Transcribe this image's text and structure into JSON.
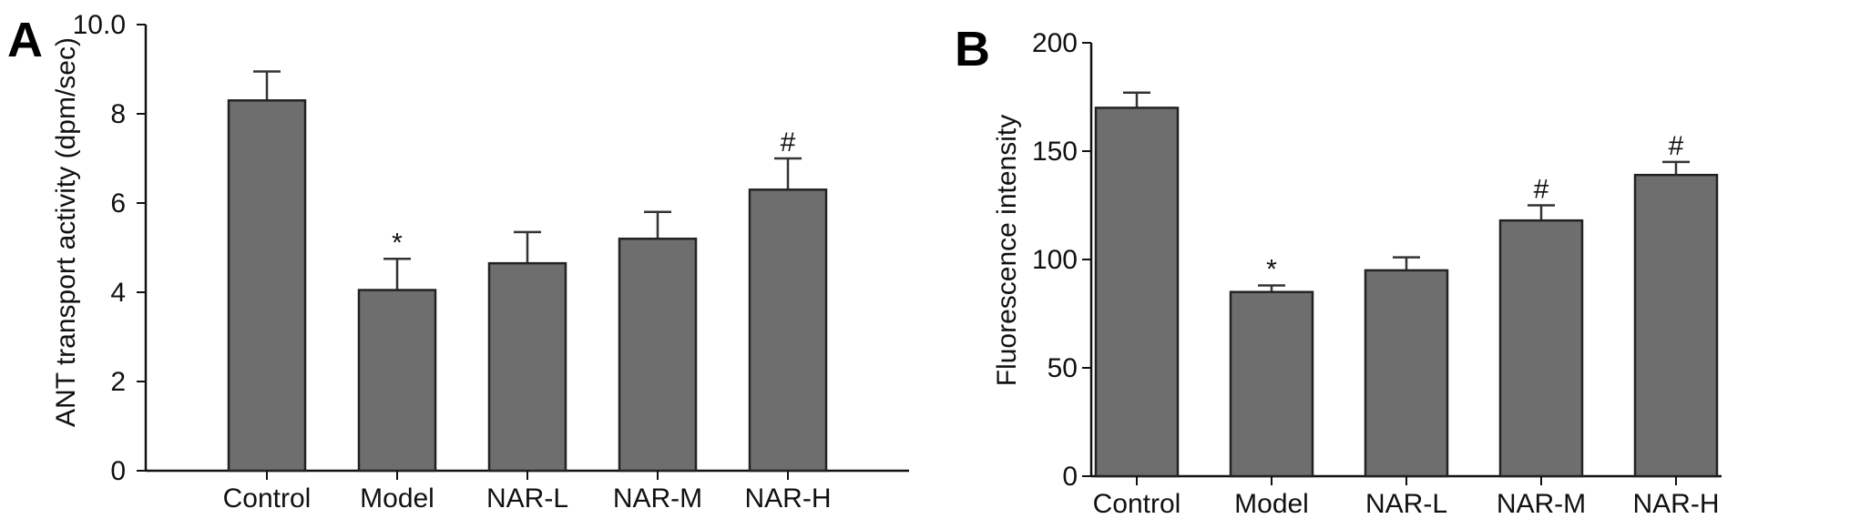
{
  "chart_data": [
    {
      "type": "bar",
      "panel_label": "A",
      "categories": [
        "Control",
        "Model",
        "NAR-L",
        "NAR-M",
        "NAR-H"
      ],
      "values": [
        8.3,
        4.05,
        4.65,
        5.2,
        6.3
      ],
      "errors": [
        0.65,
        0.7,
        0.7,
        0.6,
        0.7
      ],
      "annotations": [
        "",
        "*",
        "",
        "",
        "#"
      ],
      "title": "",
      "xlabel": "",
      "ylabel": "ANT transport activity (dpm/sec)",
      "ylim": [
        0,
        10
      ],
      "yticks": [
        0,
        2,
        4,
        6,
        8,
        10
      ],
      "ytick_labels": [
        "0",
        "2",
        "4",
        "6",
        "8",
        "10.0"
      ],
      "grid": false
    },
    {
      "type": "bar",
      "panel_label": "B",
      "categories": [
        "Control",
        "Model",
        "NAR-L",
        "NAR-M",
        "NAR-H"
      ],
      "values": [
        170,
        85,
        95,
        118,
        139
      ],
      "errors": [
        7,
        3,
        6,
        7,
        6
      ],
      "annotations": [
        "",
        "*",
        "",
        "#",
        "#"
      ],
      "title": "",
      "xlabel": "",
      "ylabel": "Fluorescence intensity",
      "ylim": [
        0,
        200
      ],
      "yticks": [
        0,
        50,
        100,
        150,
        200
      ],
      "ytick_labels": [
        "0",
        "50",
        "100",
        "150",
        "200"
      ],
      "grid": false
    }
  ],
  "colors": {
    "bar_fill": "#6e6e6e",
    "bar_edge": "#222222"
  }
}
